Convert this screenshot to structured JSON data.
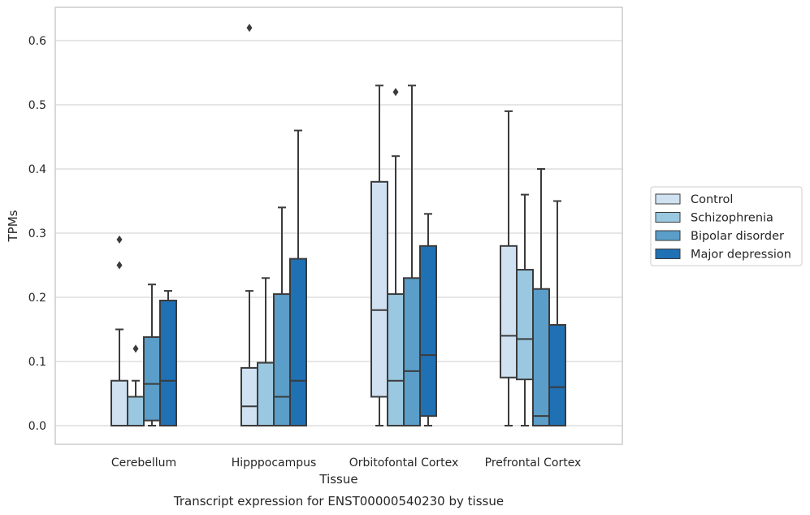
{
  "chart_data": {
    "type": "box",
    "caption": "Transcript expression for ENST00000540230 by tissue",
    "xlabel": "Tissue",
    "ylabel": "TPMs",
    "ylim": [
      -0.03,
      0.65
    ],
    "yticks": [
      0.0,
      0.1,
      0.2,
      0.3,
      0.4,
      0.5,
      0.6
    ],
    "ytick_labels": [
      "0.0",
      "0.1",
      "0.2",
      "0.3",
      "0.4",
      "0.5",
      "0.6"
    ],
    "grid": true,
    "legend_position": "right",
    "categories": [
      "Cerebellum",
      "Hipppocampus",
      "Orbitofontal Cortex",
      "Prefrontal Cortex"
    ],
    "series": [
      {
        "name": "Control",
        "color": "#d0e1f2",
        "boxes": [
          {
            "min": 0.0,
            "q1": 0.0,
            "median": 0.0,
            "q3": 0.07,
            "max": 0.15,
            "outliers": [
              0.25,
              0.29
            ]
          },
          {
            "min": 0.0,
            "q1": 0.0,
            "median": 0.03,
            "q3": 0.09,
            "max": 0.21,
            "outliers": [
              0.62
            ]
          },
          {
            "min": 0.0,
            "q1": 0.045,
            "median": 0.18,
            "q3": 0.38,
            "max": 0.53,
            "outliers": []
          },
          {
            "min": 0.0,
            "q1": 0.075,
            "median": 0.14,
            "q3": 0.28,
            "max": 0.49,
            "outliers": []
          }
        ]
      },
      {
        "name": "Schizophrenia",
        "color": "#9ac8e0",
        "boxes": [
          {
            "min": 0.0,
            "q1": 0.0,
            "median": 0.0,
            "q3": 0.045,
            "max": 0.07,
            "outliers": [
              0.12
            ]
          },
          {
            "min": 0.0,
            "q1": 0.0,
            "median": 0.0,
            "q3": 0.098,
            "max": 0.23,
            "outliers": []
          },
          {
            "min": 0.0,
            "q1": 0.0,
            "median": 0.07,
            "q3": 0.205,
            "max": 0.42,
            "outliers": [
              0.52
            ]
          },
          {
            "min": 0.0,
            "q1": 0.072,
            "median": 0.135,
            "q3": 0.243,
            "max": 0.36,
            "outliers": []
          }
        ]
      },
      {
        "name": "Bipolar disorder",
        "color": "#5a9ec9",
        "boxes": [
          {
            "min": 0.0,
            "q1": 0.008,
            "median": 0.065,
            "q3": 0.138,
            "max": 0.22,
            "outliers": []
          },
          {
            "min": 0.0,
            "q1": 0.0,
            "median": 0.045,
            "q3": 0.205,
            "max": 0.34,
            "outliers": []
          },
          {
            "min": 0.0,
            "q1": 0.0,
            "median": 0.085,
            "q3": 0.23,
            "max": 0.53,
            "outliers": []
          },
          {
            "min": 0.0,
            "q1": 0.0,
            "median": 0.015,
            "q3": 0.213,
            "max": 0.4,
            "outliers": []
          }
        ]
      },
      {
        "name": "Major depression",
        "color": "#2070b4",
        "boxes": [
          {
            "min": 0.0,
            "q1": 0.0,
            "median": 0.07,
            "q3": 0.195,
            "max": 0.21,
            "outliers": []
          },
          {
            "min": 0.0,
            "q1": 0.0,
            "median": 0.07,
            "q3": 0.26,
            "max": 0.46,
            "outliers": []
          },
          {
            "min": 0.0,
            "q1": 0.015,
            "median": 0.11,
            "q3": 0.28,
            "max": 0.33,
            "outliers": []
          },
          {
            "min": 0.0,
            "q1": 0.0,
            "median": 0.06,
            "q3": 0.157,
            "max": 0.35,
            "outliers": []
          }
        ]
      }
    ]
  }
}
